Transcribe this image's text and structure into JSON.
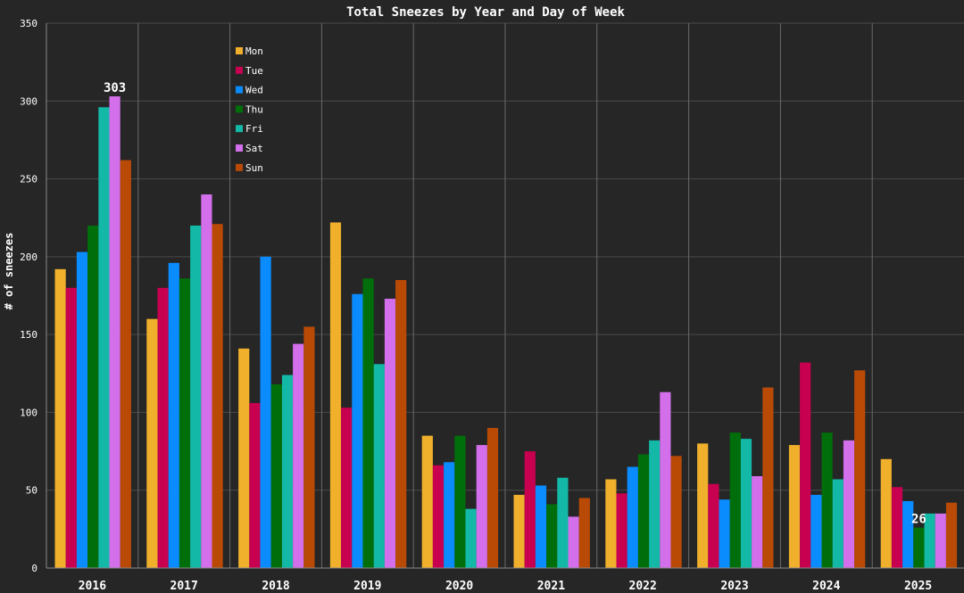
{
  "chart_data": {
    "type": "bar",
    "title": "Total Sneezes by Year and Day of Week",
    "xlabel": "",
    "ylabel": "# of sneezes",
    "ylim": [
      0,
      350
    ],
    "yticks": [
      0,
      50,
      100,
      150,
      200,
      250,
      300,
      350
    ],
    "grid": true,
    "legend_position": "top-left",
    "categories": [
      "2016",
      "2017",
      "2018",
      "2019",
      "2020",
      "2021",
      "2022",
      "2023",
      "2024",
      "2025"
    ],
    "series": [
      {
        "name": "Mon",
        "color": "#f0b02c",
        "values": [
          192,
          160,
          141,
          222,
          85,
          47,
          57,
          80,
          79,
          70
        ]
      },
      {
        "name": "Tue",
        "color": "#c7004f",
        "values": [
          180,
          180,
          106,
          103,
          66,
          75,
          48,
          54,
          132,
          52
        ]
      },
      {
        "name": "Wed",
        "color": "#0a8cff",
        "values": [
          203,
          196,
          200,
          176,
          68,
          53,
          65,
          44,
          47,
          43
        ]
      },
      {
        "name": "Thu",
        "color": "#006e0a",
        "values": [
          220,
          186,
          118,
          186,
          85,
          41,
          73,
          87,
          87,
          26
        ]
      },
      {
        "name": "Fri",
        "color": "#13b8a6",
        "values": [
          296,
          220,
          124,
          131,
          38,
          58,
          82,
          83,
          57,
          35
        ]
      },
      {
        "name": "Sat",
        "color": "#d36fea",
        "values": [
          303,
          240,
          144,
          173,
          79,
          33,
          113,
          59,
          82,
          35
        ]
      },
      {
        "name": "Sun",
        "color": "#b84a06",
        "values": [
          262,
          221,
          155,
          185,
          90,
          45,
          72,
          116,
          127,
          42
        ]
      }
    ],
    "annotations": [
      {
        "text": "303",
        "category": "2016",
        "series": "Sat"
      },
      {
        "text": "26",
        "category": "2025",
        "series": "Thu"
      }
    ]
  }
}
